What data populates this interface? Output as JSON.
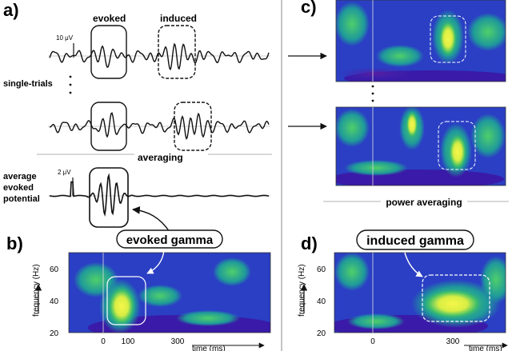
{
  "panels": {
    "a": "a)",
    "b": "b)",
    "c": "c)",
    "d": "d)"
  },
  "labels": {
    "evoked": "evoked",
    "induced": "induced",
    "scale_10uv": "10 μV",
    "scale_2uv": "2 μV",
    "single_trials": "single-trials",
    "averaging": "averaging",
    "average_line1": "average",
    "average_line2": "evoked",
    "average_line3": "potential",
    "power_averaging": "power averaging",
    "evoked_gamma": "evoked gamma",
    "induced_gamma": "induced gamma"
  },
  "tfr_b": {
    "ylabel": "frequency (Hz)",
    "xlabel": "time (ms)",
    "yticks": [
      "60",
      "40",
      "20"
    ],
    "xticks": [
      "0",
      "100",
      "300"
    ]
  },
  "tfr_d": {
    "ylabel": "frequency (Hz)",
    "xlabel": "time (ms)",
    "yticks": [
      "60",
      "40",
      "20"
    ],
    "xticks": [
      "0",
      "300"
    ]
  },
  "colors": {
    "bg": "#2a3fc4",
    "dark": "#3a1aa8",
    "teal": "#1f9a9a",
    "green": "#3fbf6a",
    "yellow": "#f2f24a"
  }
}
